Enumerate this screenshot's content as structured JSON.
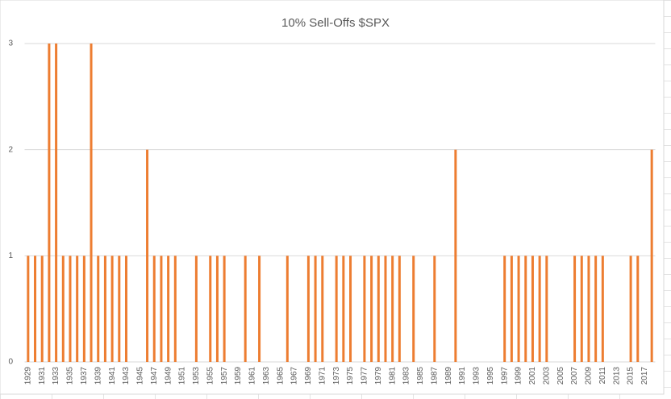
{
  "chart_data": {
    "type": "bar",
    "title": "10% Sell-Offs $SPX",
    "categories": [
      "1929",
      null,
      "1931",
      null,
      "1933",
      null,
      "1935",
      null,
      "1937",
      null,
      "1939",
      null,
      "1941",
      null,
      "1943",
      null,
      "1945",
      null,
      "1947",
      null,
      "1949",
      null,
      "1951",
      null,
      "1953",
      null,
      "1955",
      null,
      "1957",
      null,
      "1959",
      null,
      "1961",
      null,
      "1963",
      null,
      "1965",
      null,
      "1967",
      null,
      "1969",
      null,
      "1971",
      null,
      "1973",
      null,
      "1975",
      null,
      "1977",
      null,
      "1979",
      null,
      "1981",
      null,
      "1983",
      null,
      "1985",
      null,
      "1987",
      null,
      "1989",
      null,
      "1991",
      null,
      "1993",
      null,
      "1995",
      null,
      "1997",
      null,
      "1999",
      null,
      "2001",
      null,
      "2003",
      null,
      "2005",
      null,
      "2007",
      null,
      "2009",
      null,
      "2011",
      null,
      "2013",
      null,
      "2015",
      null,
      "2017",
      null
    ],
    "values": [
      1,
      1,
      1,
      3,
      3,
      1,
      1,
      1,
      1,
      3,
      1,
      1,
      1,
      1,
      1,
      0,
      0,
      2,
      1,
      1,
      1,
      1,
      0,
      0,
      1,
      0,
      1,
      1,
      1,
      0,
      0,
      1,
      0,
      1,
      0,
      0,
      0,
      1,
      0,
      0,
      1,
      1,
      1,
      0,
      1,
      1,
      1,
      0,
      1,
      1,
      1,
      1,
      1,
      1,
      0,
      1,
      0,
      0,
      1,
      0,
      0,
      2,
      0,
      0,
      0,
      0,
      0,
      0,
      1,
      1,
      1,
      1,
      1,
      1,
      1,
      0,
      0,
      0,
      1,
      1,
      1,
      1,
      1,
      0,
      0,
      0,
      1,
      1,
      0,
      2
    ],
    "color": "#ed7d31",
    "ylim": [
      0,
      3
    ],
    "yticks": [
      0,
      1,
      2,
      3
    ],
    "grid": true
  }
}
